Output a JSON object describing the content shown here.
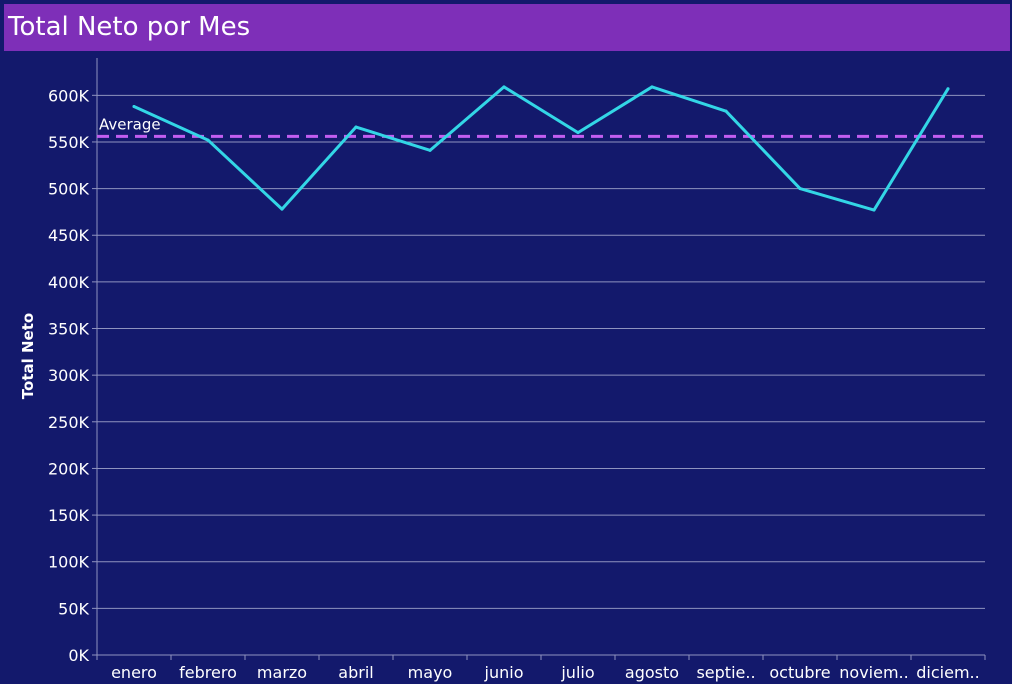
{
  "colors": {
    "background": "#13196c",
    "title_bar": "#7e2fb8",
    "line": "#33d6e6",
    "average_line": "#c25ef0",
    "gridline": "#8f93bf",
    "text": "#ffffff"
  },
  "chart_data": {
    "type": "line",
    "title": "Total Neto por Mes",
    "xlabel": "",
    "ylabel": "Total Neto",
    "categories": [
      "enero",
      "febrero",
      "marzo",
      "abril",
      "mayo",
      "junio",
      "julio",
      "agosto",
      "septie..",
      "octubre",
      "noviem..",
      "diciem.."
    ],
    "series": [
      {
        "values": [
          588000,
          552000,
          478000,
          566000,
          541000,
          609000,
          560000,
          609000,
          583000,
          500000,
          477000,
          607000
        ]
      }
    ],
    "reference_line": {
      "label": "Average",
      "value": 556000
    },
    "ylim": [
      0,
      640000
    ],
    "yticks": [
      0,
      50000,
      100000,
      150000,
      200000,
      250000,
      300000,
      350000,
      400000,
      450000,
      500000,
      550000,
      600000
    ],
    "ytick_labels": [
      "0K",
      "50K",
      "100K",
      "150K",
      "200K",
      "250K",
      "300K",
      "350K",
      "400K",
      "450K",
      "500K",
      "550K",
      "600K"
    ],
    "grid": true,
    "legend": "none"
  }
}
